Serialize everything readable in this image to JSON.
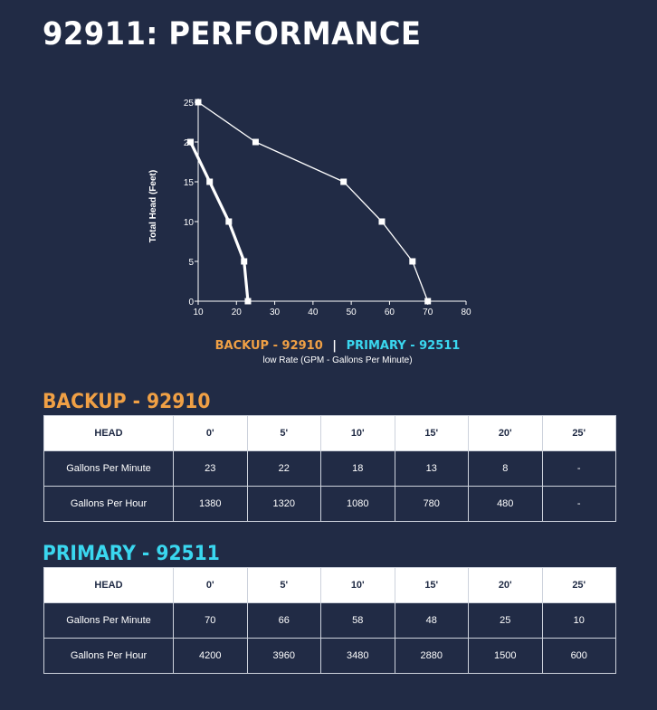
{
  "page": {
    "title": "92911: PERFORMANCE"
  },
  "colors": {
    "background": "#212b45",
    "backup_accent": "#f0a045",
    "primary_accent": "#3ad7ef",
    "line": "#ffffff"
  },
  "chart_data": {
    "type": "line",
    "xlabel": "low Rate (GPM - Gallons Per Minute)",
    "ylabel": "Total Head (Feet)",
    "xlim": [
      10,
      80
    ],
    "ylim": [
      0,
      25
    ],
    "xticks": [
      "10",
      "20",
      "30",
      "40",
      "50",
      "60",
      "70",
      "80"
    ],
    "yticks": [
      "0",
      "5",
      "10",
      "15",
      "20",
      "25"
    ],
    "grid": false,
    "legend": {
      "backup_label": "BACKUP - 92910",
      "separator": "|",
      "primary_label": "PRIMARY - 92511",
      "placement": "bottom"
    },
    "series": [
      {
        "name": "PRIMARY - 92511",
        "points": [
          [
            70,
            0
          ],
          [
            66,
            5
          ],
          [
            58,
            10
          ],
          [
            48,
            15
          ],
          [
            25,
            20
          ],
          [
            10,
            25
          ]
        ]
      },
      {
        "name": "BACKUP - 92910",
        "points": [
          [
            23,
            0
          ],
          [
            22,
            5
          ],
          [
            18,
            10
          ],
          [
            13,
            15
          ],
          [
            8,
            20
          ]
        ]
      }
    ]
  },
  "backup": {
    "title": "BACKUP - 92910",
    "headers": [
      "HEAD",
      "0'",
      "5'",
      "10'",
      "15'",
      "20'",
      "25'"
    ],
    "rows": [
      [
        "Gallons Per Minute",
        "23",
        "22",
        "18",
        "13",
        "8",
        "-"
      ],
      [
        "Gallons Per Hour",
        "1380",
        "1320",
        "1080",
        "780",
        "480",
        "-"
      ]
    ]
  },
  "primary": {
    "title": "PRIMARY - 92511",
    "headers": [
      "HEAD",
      "0'",
      "5'",
      "10'",
      "15'",
      "20'",
      "25'"
    ],
    "rows": [
      [
        "Gallons Per Minute",
        "70",
        "66",
        "58",
        "48",
        "25",
        "10"
      ],
      [
        "Gallons Per Hour",
        "4200",
        "3960",
        "3480",
        "2880",
        "1500",
        "600"
      ]
    ]
  }
}
